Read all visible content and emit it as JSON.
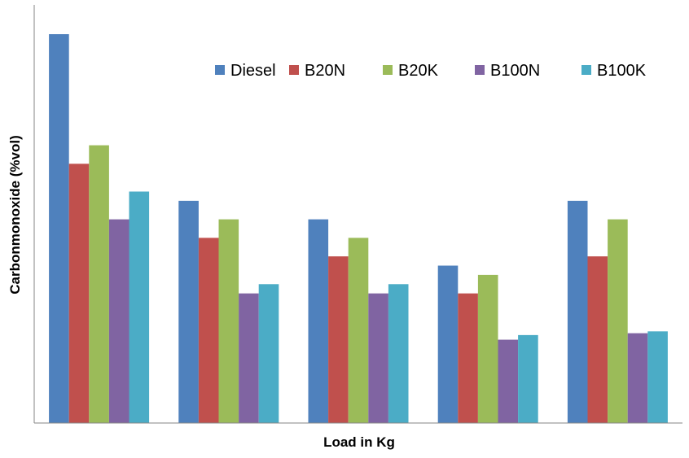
{
  "chart_data": {
    "type": "bar",
    "title": "",
    "xlabel": "Load in Kg",
    "ylabel": "Carbonmonoxide (%vol)",
    "categories": [
      "",
      "",
      "",
      "",
      ""
    ],
    "ylim": [
      0,
      0.42
    ],
    "grid": false,
    "legend_position": "top-right",
    "colors": [
      "#4F81BD",
      "#C0504D",
      "#9BBB59",
      "#8064A2",
      "#4BACC6"
    ],
    "series": [
      {
        "name": "Diesel",
        "values": [
          0.42,
          0.24,
          0.22,
          0.17,
          0.24
        ]
      },
      {
        "name": "B20N",
        "values": [
          0.28,
          0.2,
          0.18,
          0.14,
          0.18
        ]
      },
      {
        "name": "B20K",
        "values": [
          0.3,
          0.22,
          0.2,
          0.16,
          0.22
        ]
      },
      {
        "name": "B100N",
        "values": [
          0.22,
          0.14,
          0.14,
          0.09,
          0.097
        ]
      },
      {
        "name": "B100K",
        "values": [
          0.25,
          0.15,
          0.15,
          0.095,
          0.099
        ]
      }
    ]
  }
}
